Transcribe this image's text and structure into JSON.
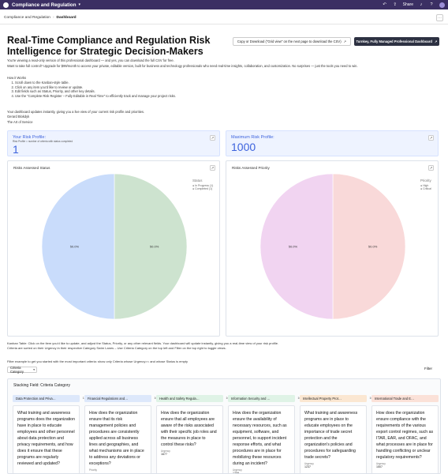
{
  "header": {
    "app_title": "Compliance and Regulation",
    "share_label": "Share"
  },
  "breadcrumb": {
    "parent": "Compliance and Regulation",
    "current": "Dashboard"
  },
  "page": {
    "title": "Real-Time Compliance and Regulation Risk Intelligence for Strategic Decision-Makers",
    "copy_button": "Copy or Download (\"Grid view\" on the next page to download the CSV)",
    "primary_button": "Turnkey, Fully Managed Professional Dashboard",
    "intro_1": "You're viewing a read-only version of this professional dashboard — and yes, you can download the full CSV for free.",
    "intro_2": "Want to take full control? Upgrade for $99/month to access your private, editable version, built for business and technology professionals who need real-time insights, collaboration, and customization. No surprises — just the tools you need to win.",
    "howto_title": "How it Works",
    "howto_steps": [
      "Scroll down to the Kanban-style table.",
      "Click on any item you'd like to review or update.",
      "Edit fields such as Status, Priority, and other key details.",
      "Use the \"Complete Risk Register – Fully Editable in Real Time\" to efficiently track and manage your project risks."
    ],
    "footer_1": "Your dashboard updates instantly, giving you a live view of your current risk profile and priorities.",
    "footer_2": "Gerard Blokdyk",
    "footer_3": "The Art of Service"
  },
  "kpis": {
    "risk_profile": {
      "label": "Your Risk Profile:",
      "sub": "Risk Profile = number of criteria with status completed",
      "value": "1"
    },
    "max_risk": {
      "label": "Maximum Risk Profile:",
      "value": "1000"
    }
  },
  "chart_data": [
    {
      "type": "pie",
      "title": "Risks Assessed Status",
      "legend_title": "Status",
      "legend_position": "top-right",
      "categories": [
        "In Progress (1)",
        "Completed (1)"
      ],
      "values": [
        50,
        50
      ],
      "labels": [
        "50.0%",
        "50.0%"
      ],
      "colors": [
        "#cde3cf",
        "#c9dcfb"
      ]
    },
    {
      "type": "pie",
      "title": "Risks Assessed Priority",
      "legend_title": "Priority",
      "legend_position": "top-right",
      "categories": [
        "High",
        "Critical"
      ],
      "values": [
        50,
        50
      ],
      "labels": [
        "50.0%",
        "50.0%"
      ],
      "colors": [
        "#f9d9d9",
        "#f1d4f1"
      ]
    }
  ],
  "kanban": {
    "info_1": "Kanban Table: Click on the item you'd like to update, and adjust the Status, Priority, or any other relevant fields. Your dashboard will update instantly, giving you a real-time view of your risk profile.",
    "info_2": "Criteria are sorted on their Urgency in their respective Category Swim Lanes – Use Criteria Category on the top left and Filter on the top right to toggle views.",
    "filter_note": "Filter example to get you started with the most important criteria: show only Criteria whose Urgency>= and whose Status is empty",
    "dropdown_label": "Criteria Category",
    "filter_label": "Filter",
    "stack_label": "Stacking Field: Criteria Category",
    "columns": [
      {
        "name": "Data Protection and Priva…",
        "count": "110",
        "color": "#dde8fb",
        "question": "What training and awareness programs does the organization have in place to educate employees and other personnel about data protection and privacy requirements, and how does it ensure that these programs are regularly reviewed and updated?",
        "field_label": "",
        "field_value": ""
      },
      {
        "name": "Financial Regulations and…",
        "count": "100",
        "color": "#dde8fb",
        "question": "How does the organization ensure that its risk management policies and procedures are consistently applied across all business lines and geographies, and what mechanisms are in place to address any deviations or exceptions?",
        "field_label": "Priority",
        "field_value": "Critical"
      },
      {
        "name": "Health and Safety Regula…",
        "count": "100",
        "color": "#dff3e6",
        "question": "How does the organization ensure that all employees are aware of the risks associated with their specific job roles and the measures in place to control these risks?",
        "field_label": "Urgency",
        "field_value": "1677"
      },
      {
        "name": "Information Security and …",
        "count": "100",
        "color": "#dff3e6",
        "question": "How does the organization ensure the availability of necessary resources, such as equipment, software, and personnel, to support incident response efforts, and what procedures are in place for mobilizing these resources during an incident?",
        "field_label": "Urgency",
        "field_value": "1209"
      },
      {
        "name": "Intellectual Property Prot…",
        "count": "100",
        "color": "#fbe7d2",
        "question": "What training and awareness programs are in place to educate employees on the importance of trade secret protection and the organization's policies and procedures for safeguarding trade secrets?",
        "field_label": "Urgency",
        "field_value": "1237"
      },
      {
        "name": "International Trade and E…",
        "count": "100",
        "color": "#fbe1d8",
        "question": "How does the organization ensure compliance with the requirements of the various export control regimes, such as ITAR, EAR, and OFAC, and what processes are in place for handling conflicting or unclear regulatory requirements?",
        "field_label": "Urgency",
        "field_value": "1507"
      }
    ]
  },
  "colors": {
    "topbar": "#3b2f63",
    "kpi_accent": "#3d63dd",
    "primary_button": "#2d3142"
  }
}
